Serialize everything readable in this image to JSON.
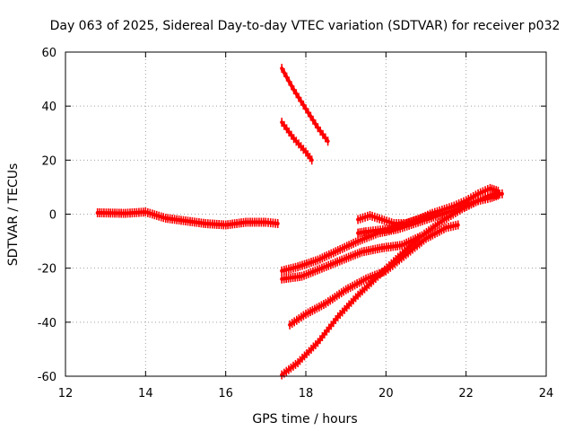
{
  "chart_data": {
    "type": "line",
    "title": "Day 063 of 2025, Sidereal Day-to-day VTEC variation (SDTVAR) for receiver p032",
    "xlabel": "GPS time / hours",
    "ylabel": "SDTVAR / TECUs",
    "xlim": [
      12,
      24
    ],
    "ylim": [
      -60,
      60
    ],
    "xticks": [
      12,
      14,
      16,
      18,
      20,
      22,
      24
    ],
    "yticks": [
      -60,
      -40,
      -20,
      0,
      20,
      40,
      60
    ],
    "grid": true,
    "color": "#ff0000",
    "series": [
      {
        "name": "track-1",
        "x": [
          12.8,
          13.5,
          14.0,
          14.5,
          15.0,
          15.5,
          16.0,
          16.5,
          17.0,
          17.3
        ],
        "y": [
          0.5,
          0.3,
          0.8,
          -1.5,
          -2.5,
          -3.5,
          -4.0,
          -3.0,
          -3.0,
          -3.5
        ]
      },
      {
        "name": "track-2",
        "x": [
          17.4,
          17.7,
          18.0,
          18.3,
          18.55
        ],
        "y": [
          54,
          46,
          39,
          32,
          27
        ]
      },
      {
        "name": "track-3",
        "x": [
          17.4,
          17.7,
          18.0,
          18.15
        ],
        "y": [
          34,
          28,
          23,
          20
        ]
      },
      {
        "name": "track-4",
        "x": [
          17.4,
          17.8,
          18.3,
          18.8,
          19.3,
          19.8,
          20.3,
          20.8,
          21.3,
          21.8,
          22.3,
          22.6,
          22.9
        ],
        "y": [
          -21,
          -19.5,
          -17,
          -13.5,
          -10,
          -7,
          -5.5,
          -3,
          -0.5,
          2,
          5,
          7,
          7.5
        ]
      },
      {
        "name": "track-5",
        "x": [
          17.4,
          17.9,
          18.4,
          18.9,
          19.4,
          19.9,
          20.4,
          20.9,
          21.4,
          21.9,
          22.3,
          22.6,
          22.8
        ],
        "y": [
          -24,
          -23,
          -20,
          -17,
          -14,
          -12.5,
          -11.5,
          -8,
          -2.5,
          2,
          5,
          6,
          7
        ]
      },
      {
        "name": "track-6",
        "x": [
          19.3,
          19.6,
          19.9,
          20.2,
          20.5,
          20.8,
          21.1,
          21.4,
          21.7,
          22.0,
          22.3,
          22.6,
          22.8
        ],
        "y": [
          -2,
          -0.5,
          -2,
          -3.5,
          -3.5,
          -2,
          0,
          1.5,
          3,
          5,
          7.5,
          9.5,
          8.5
        ]
      },
      {
        "name": "track-7",
        "x": [
          19.3,
          19.5,
          19.8,
          20.1,
          20.4,
          20.7,
          21.0,
          21.3
        ],
        "y": [
          -7,
          -6.5,
          -6,
          -5.5,
          -4,
          -2.5,
          -1,
          0
        ]
      },
      {
        "name": "track-8",
        "x": [
          17.6,
          18.0,
          18.5,
          19.0,
          19.5,
          20.0,
          20.5,
          21.0,
          21.5,
          21.8
        ],
        "y": [
          -41,
          -37,
          -33,
          -28,
          -24,
          -21,
          -15,
          -9,
          -5,
          -4
        ]
      },
      {
        "name": "track-9",
        "x": [
          17.4,
          17.8,
          18.3,
          18.8,
          19.3,
          19.8,
          20.3,
          20.8
        ],
        "y": [
          -59.5,
          -55,
          -47.5,
          -38,
          -30,
          -23,
          -16,
          -9
        ]
      }
    ]
  }
}
